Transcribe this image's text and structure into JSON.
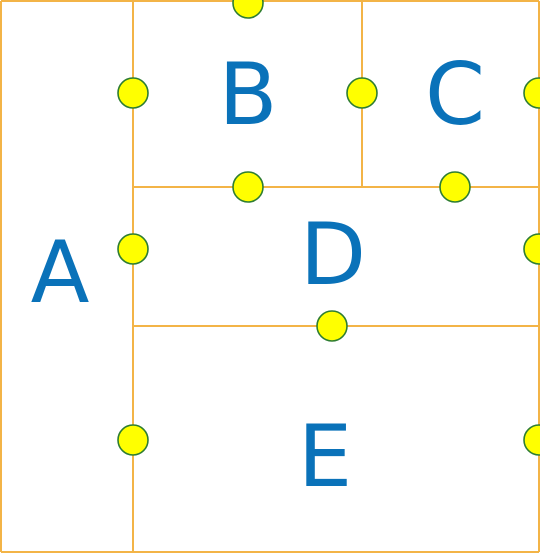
{
  "diagram": {
    "colors": {
      "border": "#f3b447",
      "label": "#0a72b9",
      "dot_fill": "#ffff00",
      "dot_stroke": "#2e7d32",
      "background": "#ffffff"
    },
    "regions": [
      {
        "id": "A",
        "label": "A"
      },
      {
        "id": "B",
        "label": "B"
      },
      {
        "id": "C",
        "label": "C"
      },
      {
        "id": "D",
        "label": "D"
      },
      {
        "id": "E",
        "label": "E"
      }
    ]
  }
}
